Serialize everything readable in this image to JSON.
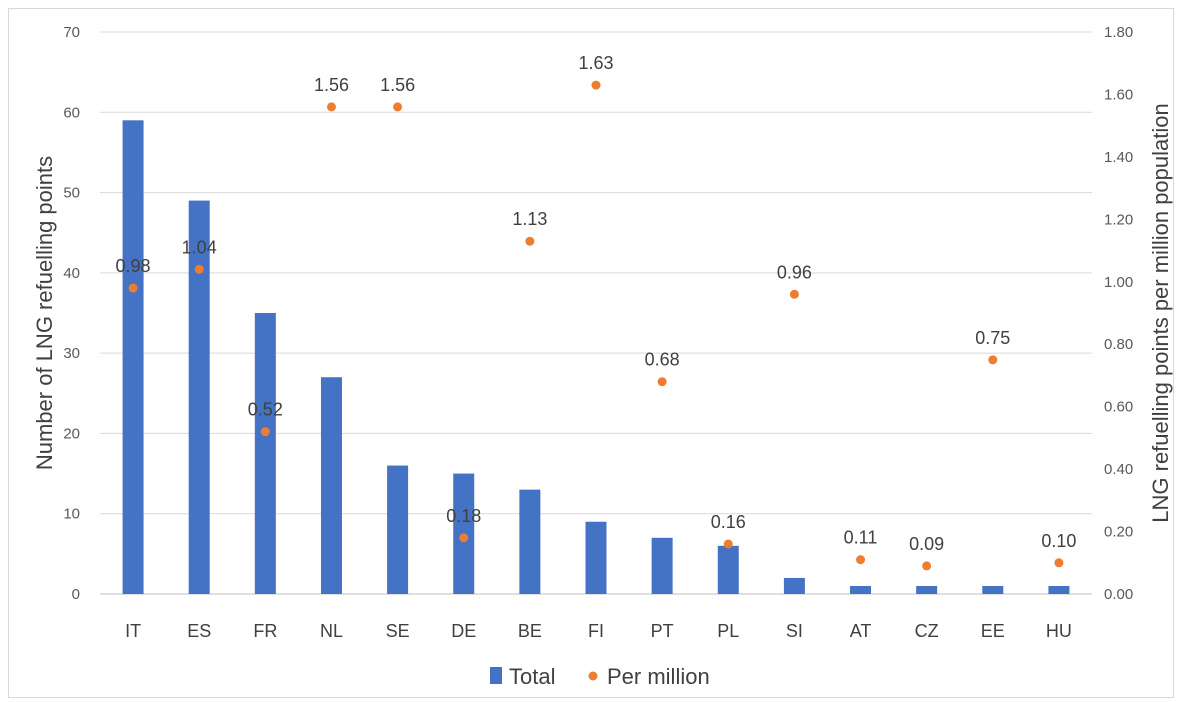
{
  "chart_data": {
    "type": "bar",
    "categories": [
      "IT",
      "ES",
      "FR",
      "NL",
      "SE",
      "DE",
      "BE",
      "FI",
      "PT",
      "PL",
      "SI",
      "AT",
      "CZ",
      "EE",
      "HU"
    ],
    "series": [
      {
        "name": "Total",
        "type": "bar",
        "axis": "left",
        "color": "#4472C4",
        "values": [
          59,
          49,
          35,
          27,
          16,
          15,
          13,
          9,
          7,
          6,
          2,
          1,
          1,
          1,
          1
        ]
      },
      {
        "name": "Per million",
        "type": "scatter",
        "axis": "right",
        "color": "#ED7D31",
        "values": [
          0.98,
          1.04,
          0.52,
          1.56,
          1.56,
          0.18,
          1.13,
          1.63,
          0.68,
          0.16,
          0.96,
          0.11,
          0.09,
          0.75,
          0.1
        ],
        "labels": [
          "0.98",
          "1.04",
          "0.52",
          "1.56",
          "1.56",
          "0.18",
          "1.13",
          "1.63",
          "0.68",
          "0.16",
          "0.96",
          "0.11",
          "0.09",
          "0.75",
          "0.10"
        ]
      }
    ],
    "ylabel": "Number of LNG refuelling points",
    "ylim": [
      0,
      70
    ],
    "yticks": [
      "0",
      "10",
      "20",
      "30",
      "40",
      "50",
      "60",
      "70"
    ],
    "y2label": "LNG refuelling points per million population",
    "y2lim": [
      0,
      1.8
    ],
    "y2ticks": [
      "0.00",
      "0.20",
      "0.40",
      "0.60",
      "0.80",
      "1.00",
      "1.20",
      "1.40",
      "1.60",
      "1.80"
    ],
    "grid": true,
    "legend": "bottom-center"
  }
}
